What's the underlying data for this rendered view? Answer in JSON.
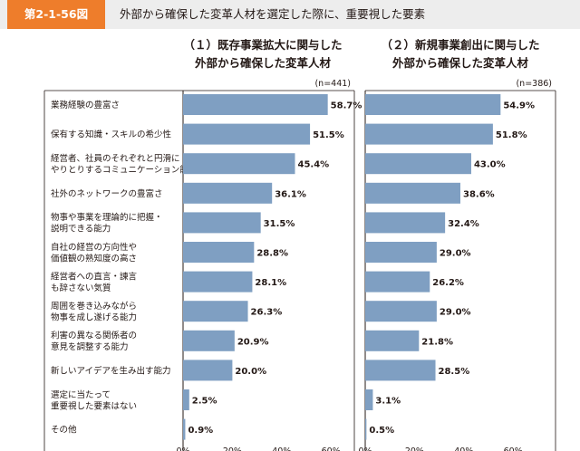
{
  "figure": {
    "number": "第2-1-56図",
    "title": "外部から確保した変革人材を選定した際に、重要視した要素",
    "accent_color": "#ee7d2b",
    "bar_color": "#7f9fc2"
  },
  "chart_data": [
    {
      "type": "bar",
      "orientation": "horizontal",
      "title_lines": [
        "（１）既存事業拡大に関与した",
        "外部から確保した変革人材"
      ],
      "n": "(n=441)",
      "categories": [
        [
          "業務経験の豊富さ"
        ],
        [
          "保有する知識・スキルの希少性"
        ],
        [
          "経営者、社員のそれぞれと円滑に",
          "やりとりするコミュニケーション能力"
        ],
        [
          "社外のネットワークの豊富さ"
        ],
        [
          "物事や事業を理論的に把握・",
          "説明できる能力"
        ],
        [
          "自社の経営の方向性や",
          "価値観の熟知度の高さ"
        ],
        [
          "経営者への直言・諫言",
          "も辞さない気質"
        ],
        [
          "周囲を巻き込みながら",
          "物事を成し遂げる能力"
        ],
        [
          "利害の異なる関係者の",
          "意見を調整する能力"
        ],
        [
          "新しいアイデアを生み出す能力"
        ],
        [
          "選定に当たって",
          "重要視した要素はない"
        ],
        [
          "その他"
        ]
      ],
      "values": [
        58.7,
        51.5,
        45.4,
        36.1,
        31.5,
        28.8,
        28.1,
        26.3,
        20.9,
        20.0,
        2.5,
        0.9
      ],
      "value_labels": [
        "58.7%",
        "51.5%",
        "45.4%",
        "36.1%",
        "31.5%",
        "28.8%",
        "28.1%",
        "26.3%",
        "20.9%",
        "20.0%",
        "2.5%",
        "0.9%"
      ],
      "xlim": [
        0,
        70
      ],
      "x_ticks": [
        "0%",
        "20%",
        "40%",
        "60%"
      ]
    },
    {
      "type": "bar",
      "orientation": "horizontal",
      "title_lines": [
        "（２）新規事業創出に関与した",
        "外部から確保した変革人材"
      ],
      "n": "(n=386)",
      "values": [
        54.9,
        51.8,
        43.0,
        38.6,
        32.4,
        29.0,
        26.2,
        29.0,
        21.8,
        28.5,
        3.1,
        0.5
      ],
      "value_labels": [
        "54.9%",
        "51.8%",
        "43.0%",
        "38.6%",
        "32.4%",
        "29.0%",
        "26.2%",
        "29.0%",
        "21.8%",
        "28.5%",
        "3.1%",
        "0.5%"
      ],
      "xlim": [
        0,
        70
      ],
      "x_ticks": [
        "0%",
        "20%",
        "40%",
        "60%"
      ]
    }
  ]
}
